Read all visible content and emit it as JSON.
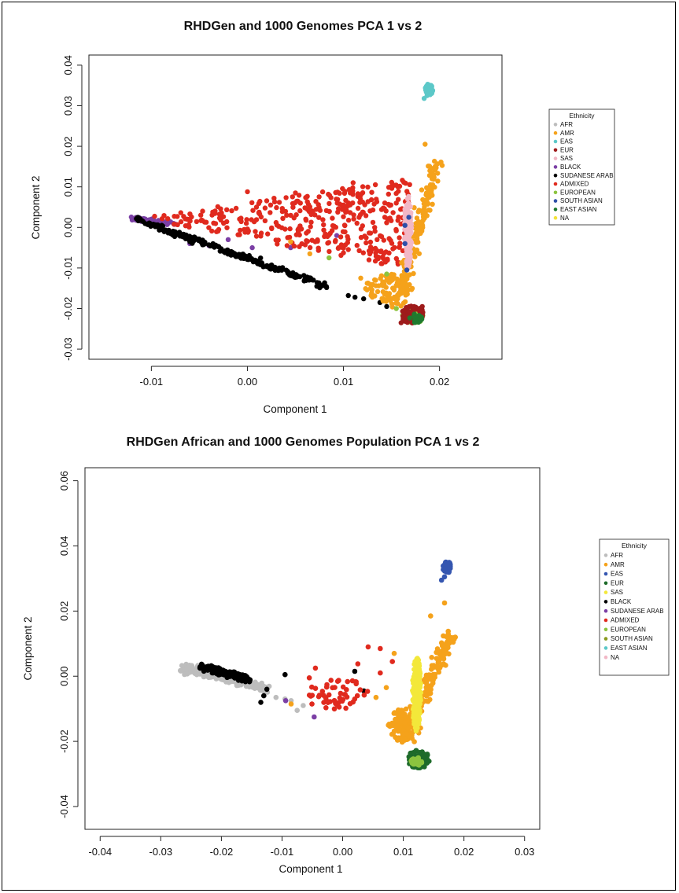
{
  "figure": {
    "frame_color": "#000000"
  },
  "chart_data": [
    {
      "type": "scatter",
      "title": "RHDGen and 1000 Genomes PCA 1 vs 2",
      "xlabel": "Component 1",
      "ylabel": "Component 2",
      "xlim": [
        -0.0165,
        0.0265
      ],
      "ylim": [
        -0.0325,
        0.0425
      ],
      "xticks": [
        -0.01,
        0.0,
        0.01,
        0.02
      ],
      "xtick_labels": [
        "-0.01",
        "0.00",
        "0.01",
        "0.02"
      ],
      "yticks": [
        -0.03,
        -0.02,
        -0.01,
        0.0,
        0.01,
        0.02,
        0.03,
        0.04
      ],
      "ytick_labels": [
        "-0.03",
        "-0.02",
        "-0.01",
        "0.00",
        "0.01",
        "0.02",
        "0.03",
        "0.04"
      ],
      "grid": false,
      "legend_placement": "right",
      "legend": {
        "title": "Ethnicity",
        "entries": [
          {
            "label": "AFR",
            "color": "#bdbdbd"
          },
          {
            "label": "AMR",
            "color": "#f5a21b"
          },
          {
            "label": "EAS",
            "color": "#5cc8c8"
          },
          {
            "label": "EUR",
            "color": "#9e1b1b"
          },
          {
            "label": "SAS",
            "color": "#f2b8c6"
          },
          {
            "label": "BLACK",
            "color": "#7b3fa5"
          },
          {
            "label": "SUDANESE ARAB",
            "color": "#000000"
          },
          {
            "label": "ADMIXED",
            "color": "#e02a1e"
          },
          {
            "label": "EUROPEAN",
            "color": "#8cc43f"
          },
          {
            "label": "SOUTH ASIAN",
            "color": "#2e4fa8"
          },
          {
            "label": "EAST ASIAN",
            "color": "#1e7a2e"
          },
          {
            "label": "NA",
            "color": "#f3e33a"
          }
        ]
      },
      "series": [
        {
          "label": "BLACK",
          "color": "#7b3fa5",
          "clusters": [
            {
              "shape": "line",
              "from": [
                -0.0118,
                0.0022
              ],
              "to": [
                -0.0075,
                0.0008
              ],
              "spread": [
                0.0004,
                0.0006
              ],
              "n": 60
            },
            {
              "shape": "points",
              "pts": [
                [
                  -0.006,
                  -0.004
                ],
                [
                  -0.004,
                  -0.0045
                ],
                [
                  0.0005,
                  -0.005
                ],
                [
                  0.0045,
                  -0.005
                ],
                [
                  0.0093,
                  -0.002
                ],
                [
                  -0.002,
                  -0.003
                ]
              ]
            }
          ]
        },
        {
          "label": "SUDANESE ARAB",
          "color": "#000000",
          "clusters": [
            {
              "shape": "line",
              "from": [
                -0.0115,
                0.002
              ],
              "to": [
                0.0085,
                -0.0148
              ],
              "spread": [
                0.0005,
                0.0007
              ],
              "n": 230
            },
            {
              "shape": "points",
              "pts": [
                [
                  0.0105,
                  -0.0168
                ],
                [
                  0.0112,
                  -0.0172
                ],
                [
                  0.0138,
                  -0.0185
                ],
                [
                  0.0145,
                  -0.0195
                ],
                [
                  0.0121,
                  -0.0176
                ]
              ]
            }
          ]
        },
        {
          "label": "ADMIXED",
          "color": "#e02a1e",
          "clusters": [
            {
              "shape": "triangle",
              "pts": [
                [
                  -0.0115,
                  0.0025
                ],
                [
                  0.0172,
                  0.012
                ],
                [
                  0.016,
                  -0.01
                ]
              ],
              "n": 380
            },
            {
              "shape": "points",
              "pts": [
                [
                  0.0,
                  0.0088
                ],
                [
                  0.005,
                  0.0085
                ],
                [
                  0.011,
                  0.011
                ],
                [
                  0.0155,
                  0.006
                ],
                [
                  0.0095,
                  -0.005
                ],
                [
                  0.0135,
                  -0.003
                ]
              ]
            }
          ]
        },
        {
          "label": "AMR",
          "color": "#f5a21b",
          "clusters": [
            {
              "shape": "line",
              "from": [
                0.0155,
                -0.02
              ],
              "to": [
                0.0197,
                0.0165
              ],
              "spread": [
                0.0007,
                0.0008
              ],
              "n": 170
            },
            {
              "shape": "ellipse",
              "center": [
                0.0148,
                -0.015
              ],
              "r": [
                0.0025,
                0.0035
              ],
              "n": 90
            },
            {
              "shape": "points",
              "pts": [
                [
                  0.0045,
                  -0.0035
                ],
                [
                  0.0065,
                  -0.0065
                ],
                [
                  0.0185,
                  0.0205
                ],
                [
                  0.0118,
                  -0.0125
                ]
              ]
            }
          ]
        },
        {
          "label": "EUROPEAN",
          "color": "#8cc43f",
          "clusters": [
            {
              "shape": "ellipse",
              "center": [
                0.0172,
                -0.022
              ],
              "r": [
                0.0011,
                0.0017
              ],
              "n": 50
            },
            {
              "shape": "points",
              "pts": [
                [
                  0.0155,
                  -0.02
                ],
                [
                  0.0145,
                  -0.0115
                ],
                [
                  0.0085,
                  -0.0075
                ]
              ]
            }
          ]
        },
        {
          "label": "EUR",
          "color": "#9e1b1b",
          "clusters": [
            {
              "shape": "ellipse",
              "center": [
                0.0172,
                -0.0215
              ],
              "r": [
                0.0012,
                0.0022
              ],
              "n": 70
            },
            {
              "shape": "points",
              "pts": [
                [
                  0.016,
                  -0.0235
                ],
                [
                  0.0182,
                  -0.0195
                ]
              ]
            }
          ]
        },
        {
          "label": "EAST ASIAN",
          "color": "#1e7a2e",
          "clusters": [
            {
              "shape": "ellipse",
              "center": [
                0.0175,
                -0.0225
              ],
              "r": [
                0.0007,
                0.0012
              ],
              "n": 25
            }
          ]
        },
        {
          "label": "SAS",
          "color": "#f2b8c6",
          "clusters": [
            {
              "shape": "ellipse",
              "center": [
                0.0167,
                -0.001
              ],
              "r": [
                0.0004,
                0.009
              ],
              "n": 140
            }
          ]
        },
        {
          "label": "SOUTH ASIAN",
          "color": "#2e4fa8",
          "clusters": [
            {
              "shape": "points",
              "pts": [
                [
                  0.0164,
                  -0.004
                ],
                [
                  0.0166,
                  -0.0105
                ],
                [
                  0.0164,
                  0.0005
                ],
                [
                  0.0168,
                  0.0025
                ]
              ]
            }
          ]
        },
        {
          "label": "EAS",
          "color": "#5cc8c8",
          "clusters": [
            {
              "shape": "ellipse",
              "center": [
                0.0189,
                0.034
              ],
              "r": [
                0.0004,
                0.0014
              ],
              "n": 70
            },
            {
              "shape": "points",
              "pts": [
                [
                  0.0184,
                  0.0318
                ],
                [
                  0.0187,
                  0.0325
                ]
              ]
            }
          ]
        }
      ]
    },
    {
      "type": "scatter",
      "title": "RHDGen African and 1000 Genomes Population PCA 1 vs 2",
      "xlabel": "Component 1",
      "ylabel": "Component 2",
      "xlim": [
        -0.0425,
        0.0325
      ],
      "ylim": [
        -0.047,
        0.064
      ],
      "xticks": [
        -0.04,
        -0.03,
        -0.02,
        -0.01,
        0.0,
        0.01,
        0.02,
        0.03
      ],
      "xtick_labels": [
        "-0.04",
        "-0.03",
        "-0.02",
        "-0.01",
        "0.00",
        "0.01",
        "0.02",
        "0.03"
      ],
      "yticks": [
        -0.04,
        -0.02,
        0.0,
        0.02,
        0.04,
        0.06
      ],
      "ytick_labels": [
        "-0.04",
        "-0.02",
        "0.00",
        "0.02",
        "0.04",
        "0.06"
      ],
      "grid": false,
      "legend_placement": "right",
      "legend": {
        "title": "Ethnicity",
        "entries": [
          {
            "label": "AFR",
            "color": "#bdbdbd"
          },
          {
            "label": "AMR",
            "color": "#f5a21b"
          },
          {
            "label": "EAS",
            "color": "#3556b0"
          },
          {
            "label": "EUR",
            "color": "#1e6b2a"
          },
          {
            "label": "SAS",
            "color": "#f3e83a"
          },
          {
            "label": "BLACK",
            "color": "#000000"
          },
          {
            "label": "SUDANESE ARAB",
            "color": "#7b3fa5"
          },
          {
            "label": "ADMIXED",
            "color": "#e02a1e"
          },
          {
            "label": "EUROPEAN",
            "color": "#8cc43f"
          },
          {
            "label": "SOUTH ASIAN",
            "color": "#8a9a20"
          },
          {
            "label": "EAST ASIAN",
            "color": "#5cc8c8"
          },
          {
            "label": "NA",
            "color": "#f2b8c6"
          }
        ]
      },
      "series": [
        {
          "label": "AFR",
          "color": "#bdbdbd",
          "clusters": [
            {
              "shape": "line",
              "from": [
                -0.0265,
                0.003
              ],
              "to": [
                -0.0125,
                -0.004
              ],
              "spread": [
                0.0008,
                0.0012
              ],
              "n": 260
            },
            {
              "shape": "points",
              "pts": [
                [
                  -0.0095,
                  -0.007
                ],
                [
                  -0.0065,
                  -0.009
                ],
                [
                  -0.0075,
                  -0.0105
                ],
                [
                  -0.011,
                  -0.0065
                ],
                [
                  -0.0085,
                  -0.0075
                ]
              ]
            }
          ]
        },
        {
          "label": "BLACK",
          "color": "#000000",
          "clusters": [
            {
              "shape": "line",
              "from": [
                -0.0235,
                0.003
              ],
              "to": [
                -0.0155,
                -0.001
              ],
              "spread": [
                0.0008,
                0.001
              ],
              "n": 160
            },
            {
              "shape": "points",
              "pts": [
                [
                  -0.013,
                  -0.006
                ],
                [
                  -0.0135,
                  -0.008
                ],
                [
                  -0.0125,
                  -0.004
                ],
                [
                  0.002,
                  0.0015
                ],
                [
                  0.0035,
                  -0.0045
                ],
                [
                  -0.0095,
                  0.0005
                ]
              ]
            }
          ]
        },
        {
          "label": "SUDANESE ARAB",
          "color": "#7b3fa5",
          "clusters": [
            {
              "shape": "points",
              "pts": [
                [
                  -0.0094,
                  -0.0075
                ],
                [
                  -0.0047,
                  -0.0125
                ]
              ]
            }
          ]
        },
        {
          "label": "ADMIXED",
          "color": "#e02a1e",
          "clusters": [
            {
              "shape": "ellipse",
              "center": [
                -0.001,
                -0.0055
              ],
              "r": [
                0.0055,
                0.005
              ],
              "n": 55
            },
            {
              "shape": "points",
              "pts": [
                [
                  -0.0055,
                  -0.0005
                ],
                [
                  0.0042,
                  0.009
                ],
                [
                  0.0062,
                  0.0085
                ],
                [
                  0.0082,
                  0.0045
                ],
                [
                  0.0062,
                  0.001
                ],
                [
                  0.0025,
                  0.0038
                ],
                [
                  -0.0045,
                  0.0025
                ]
              ]
            }
          ]
        },
        {
          "label": "AMR",
          "color": "#f5a21b",
          "clusters": [
            {
              "shape": "line",
              "from": [
                0.0098,
                -0.02
              ],
              "to": [
                0.018,
                0.0125
              ],
              "spread": [
                0.0012,
                0.0015
              ],
              "n": 200
            },
            {
              "shape": "ellipse",
              "center": [
                0.0102,
                -0.015
              ],
              "r": [
                0.0028,
                0.005
              ],
              "n": 110
            },
            {
              "shape": "points",
              "pts": [
                [
                  0.0055,
                  -0.0065
                ],
                [
                  0.0072,
                  -0.0035
                ],
                [
                  0.0085,
                  0.007
                ],
                [
                  -0.0085,
                  -0.0085
                ],
                [
                  0.0168,
                  0.0225
                ],
                [
                  0.0145,
                  0.0185
                ]
              ]
            }
          ]
        },
        {
          "label": "SAS",
          "color": "#f3e83a",
          "clusters": [
            {
              "shape": "ellipse",
              "center": [
                0.0122,
                -0.0055
              ],
              "r": [
                0.0007,
                0.0115
              ],
              "n": 160
            }
          ]
        },
        {
          "label": "EUR",
          "color": "#1e6b2a",
          "clusters": [
            {
              "shape": "ellipse",
              "center": [
                0.0125,
                -0.0255
              ],
              "r": [
                0.0018,
                0.0028
              ],
              "n": 80
            }
          ]
        },
        {
          "label": "EUROPEAN",
          "color": "#8cc43f",
          "clusters": [
            {
              "shape": "ellipse",
              "center": [
                0.0122,
                -0.0262
              ],
              "r": [
                0.0009,
                0.0012
              ],
              "n": 30
            }
          ]
        },
        {
          "label": "EAS",
          "color": "#3556b0",
          "clusters": [
            {
              "shape": "ellipse",
              "center": [
                0.0172,
                0.0335
              ],
              "r": [
                0.0007,
                0.0018
              ],
              "n": 70
            },
            {
              "shape": "points",
              "pts": [
                [
                  0.0163,
                  0.0295
                ],
                [
                  0.0168,
                  0.0305
                ]
              ]
            }
          ]
        }
      ]
    }
  ]
}
